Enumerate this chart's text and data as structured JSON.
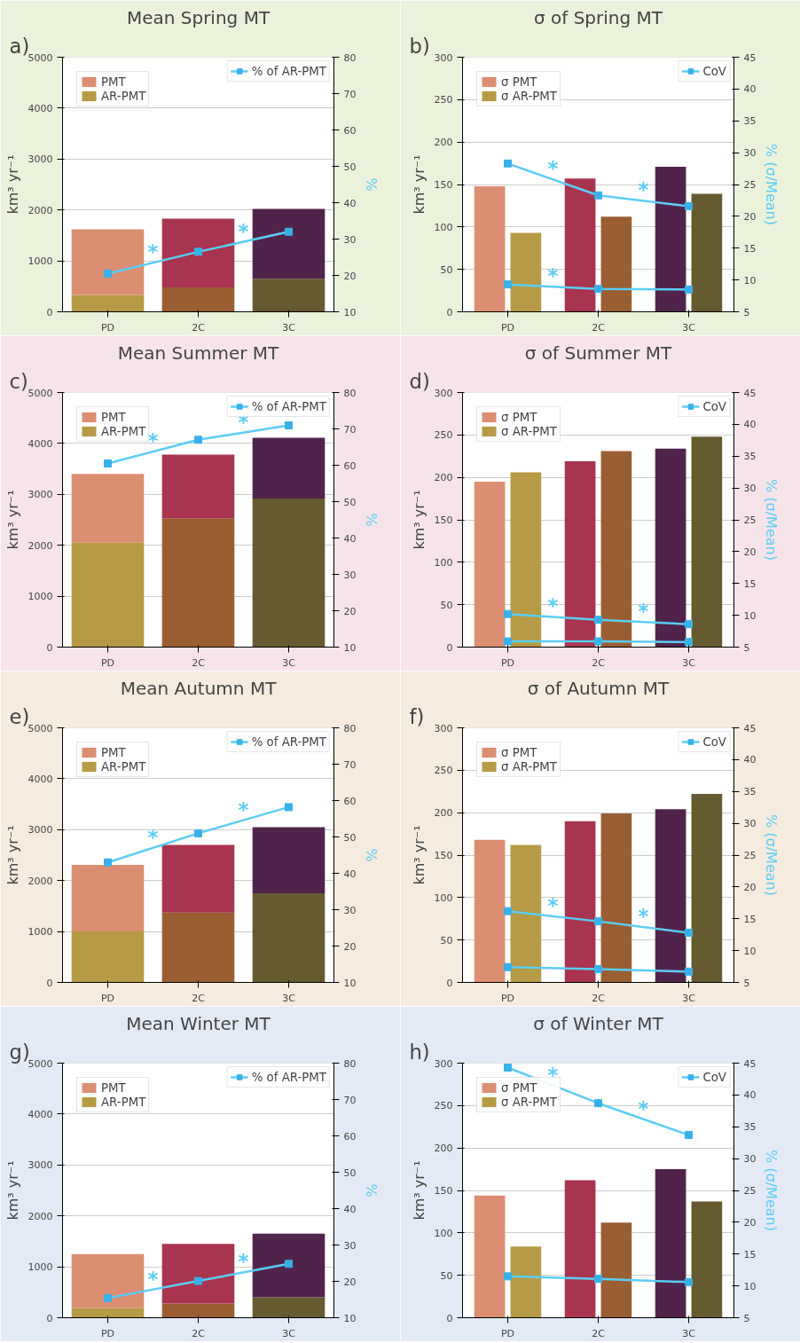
{
  "chart_data": [
    {
      "type": "bar",
      "stacked": true,
      "title": "Mean Spring MT",
      "categories": [
        "PD",
        "2C",
        "3C"
      ],
      "ylabel": "km³ yr⁻¹",
      "y2label": "%",
      "ylim": [
        0,
        5000
      ],
      "yticks": [
        0,
        1000,
        2000,
        3000,
        4000,
        5000
      ],
      "y2lim": [
        10,
        80
      ],
      "y2ticks": [
        10,
        20,
        30,
        40,
        50,
        60,
        70,
        80
      ],
      "grid": "y",
      "legend": "top",
      "marker": "square",
      "annotations": [
        "a)",
        "*",
        "*"
      ],
      "series": [
        {
          "name": "AR-PMT",
          "colors": [
            "#b69a45",
            "#9a5e33",
            "#655a30"
          ],
          "values": [
            330,
            480,
            650
          ]
        },
        {
          "name": "PMT",
          "colors": [
            "#dc8e72",
            "#a83450",
            "#50244a"
          ],
          "values": [
            1290,
            1350,
            1370
          ]
        },
        {
          "name": "% of AR-PMT",
          "type": "line",
          "axis": "y2",
          "color": "#5bcdf5",
          "values": [
            20.5,
            26.5,
            32
          ]
        }
      ]
    },
    {
      "type": "bar",
      "title": "σ of Spring MT",
      "categories": [
        "PD",
        "2C",
        "3C"
      ],
      "ylabel": "km³ yr⁻¹",
      "y2label": "% (σ/Mean)",
      "ylim": [
        0,
        300
      ],
      "yticks": [
        0,
        50,
        100,
        150,
        200,
        250,
        300
      ],
      "y2lim": [
        5,
        45
      ],
      "y2ticks": [
        5,
        10,
        15,
        20,
        25,
        30,
        35,
        40,
        45
      ],
      "grid": "y",
      "legend": "top",
      "marker": "square",
      "annotations": [
        "b)",
        "*",
        "*",
        "*"
      ],
      "series": [
        {
          "name": "σ PMT",
          "colors": [
            "#dc8e72",
            "#a83450",
            "#50244a"
          ],
          "values": [
            148,
            157,
            171
          ]
        },
        {
          "name": "σ AR-PMT",
          "colors": [
            "#b69a45",
            "#9a5e33",
            "#655a30"
          ],
          "values": [
            93,
            112,
            139
          ]
        },
        {
          "name": "CoV",
          "type": "line",
          "axis": "y2",
          "color": "#5bcdf5",
          "values": [
            28.3,
            23.3,
            21.6
          ]
        },
        {
          "type": "line",
          "axis": "y2",
          "color": "#5bcdf5",
          "values": [
            9.3,
            8.6,
            8.5
          ]
        }
      ]
    },
    {
      "type": "bar",
      "stacked": true,
      "title": "Mean Summer MT",
      "categories": [
        "PD",
        "2C",
        "3C"
      ],
      "ylabel": "km³ yr⁻¹",
      "y2label": "%",
      "ylim": [
        0,
        5000
      ],
      "yticks": [
        0,
        1000,
        2000,
        3000,
        4000,
        5000
      ],
      "y2lim": [
        10,
        80
      ],
      "y2ticks": [
        10,
        20,
        30,
        40,
        50,
        60,
        70,
        80
      ],
      "grid": "y",
      "legend": "top",
      "marker": "square",
      "annotations": [
        "c)",
        "*",
        "*"
      ],
      "series": [
        {
          "name": "AR-PMT",
          "colors": [
            "#b69a45",
            "#9a5e33",
            "#655a30"
          ],
          "values": [
            2050,
            2530,
            2920
          ]
        },
        {
          "name": "PMT",
          "colors": [
            "#dc8e72",
            "#a83450",
            "#50244a"
          ],
          "values": [
            1350,
            1250,
            1190
          ]
        },
        {
          "name": "% of AR-PMT",
          "type": "line",
          "axis": "y2",
          "color": "#5bcdf5",
          "values": [
            60.5,
            67,
            71
          ]
        }
      ]
    },
    {
      "type": "bar",
      "title": "σ of Summer MT",
      "categories": [
        "PD",
        "2C",
        "3C"
      ],
      "ylabel": "km³ yr⁻¹",
      "y2label": "% (σ/Mean)",
      "ylim": [
        0,
        300
      ],
      "yticks": [
        0,
        50,
        100,
        150,
        200,
        250,
        300
      ],
      "y2lim": [
        5,
        45
      ],
      "y2ticks": [
        5,
        10,
        15,
        20,
        25,
        30,
        35,
        40,
        45
      ],
      "grid": "y",
      "legend": "top",
      "marker": "square",
      "annotations": [
        "d)",
        "*",
        "*"
      ],
      "series": [
        {
          "name": "σ PMT",
          "colors": [
            "#dc8e72",
            "#a83450",
            "#50244a"
          ],
          "values": [
            195,
            219,
            234
          ]
        },
        {
          "name": "σ AR-PMT",
          "colors": [
            "#b69a45",
            "#9a5e33",
            "#655a30"
          ],
          "values": [
            206,
            231,
            248
          ]
        },
        {
          "name": "CoV",
          "type": "line",
          "axis": "y2",
          "color": "#5bcdf5",
          "values": [
            10.2,
            9.3,
            8.6
          ]
        },
        {
          "type": "line",
          "axis": "y2",
          "color": "#5bcdf5",
          "values": [
            5.9,
            5.9,
            5.8
          ]
        }
      ]
    },
    {
      "type": "bar",
      "stacked": true,
      "title": "Mean Autumn MT",
      "categories": [
        "PD",
        "2C",
        "3C"
      ],
      "ylabel": "km³ yr⁻¹",
      "y2label": "%",
      "ylim": [
        0,
        5000
      ],
      "yticks": [
        0,
        1000,
        2000,
        3000,
        4000,
        5000
      ],
      "y2lim": [
        10,
        80
      ],
      "y2ticks": [
        10,
        20,
        30,
        40,
        50,
        60,
        70,
        80
      ],
      "grid": "y",
      "legend": "top",
      "marker": "square",
      "annotations": [
        "e)",
        "*",
        "*"
      ],
      "series": [
        {
          "name": "AR-PMT",
          "colors": [
            "#b69a45",
            "#9a5e33",
            "#655a30"
          ],
          "values": [
            1000,
            1370,
            1750
          ]
        },
        {
          "name": "PMT",
          "colors": [
            "#dc8e72",
            "#a83450",
            "#50244a"
          ],
          "values": [
            1310,
            1330,
            1300
          ]
        },
        {
          "name": "% of AR-PMT",
          "type": "line",
          "axis": "y2",
          "color": "#5bcdf5",
          "values": [
            43,
            51,
            58.2
          ]
        }
      ]
    },
    {
      "type": "bar",
      "title": "σ of Autumn MT",
      "categories": [
        "PD",
        "2C",
        "3C"
      ],
      "ylabel": "km³ yr⁻¹",
      "y2label": "% (σ/Mean)",
      "ylim": [
        0,
        300
      ],
      "yticks": [
        0,
        50,
        100,
        150,
        200,
        250,
        300
      ],
      "y2lim": [
        5,
        45
      ],
      "y2ticks": [
        5,
        10,
        15,
        20,
        25,
        30,
        35,
        40,
        45
      ],
      "grid": "y",
      "legend": "top",
      "marker": "square",
      "annotations": [
        "f)",
        "*",
        "*"
      ],
      "series": [
        {
          "name": "σ PMT",
          "colors": [
            "#dc8e72",
            "#a83450",
            "#50244a"
          ],
          "values": [
            168,
            190,
            204
          ]
        },
        {
          "name": "σ AR-PMT",
          "colors": [
            "#b69a45",
            "#9a5e33",
            "#655a30"
          ],
          "values": [
            162,
            199,
            222
          ]
        },
        {
          "name": "CoV",
          "type": "line",
          "axis": "y2",
          "color": "#5bcdf5",
          "values": [
            16.2,
            14.6,
            12.8
          ]
        },
        {
          "type": "line",
          "axis": "y2",
          "color": "#5bcdf5",
          "values": [
            7.4,
            7.1,
            6.7
          ]
        }
      ]
    },
    {
      "type": "bar",
      "stacked": true,
      "title": "Mean Winter MT",
      "categories": [
        "PD",
        "2C",
        "3C"
      ],
      "ylabel": "km³ yr⁻¹",
      "y2label": "%",
      "ylim": [
        0,
        5000
      ],
      "yticks": [
        0,
        1000,
        2000,
        3000,
        4000,
        5000
      ],
      "y2lim": [
        10,
        80
      ],
      "y2ticks": [
        10,
        20,
        30,
        40,
        50,
        60,
        70,
        80
      ],
      "grid": "y",
      "legend": "top",
      "marker": "square",
      "annotations": [
        "g)",
        "*",
        "*"
      ],
      "series": [
        {
          "name": "AR-PMT",
          "colors": [
            "#b69a45",
            "#9a5e33",
            "#655a30"
          ],
          "values": [
            190,
            280,
            400
          ]
        },
        {
          "name": "PMT",
          "colors": [
            "#dc8e72",
            "#a83450",
            "#50244a"
          ],
          "values": [
            1060,
            1170,
            1250
          ]
        },
        {
          "name": "% of AR-PMT",
          "type": "line",
          "axis": "y2",
          "color": "#5bcdf5",
          "values": [
            15.4,
            20.1,
            24.8
          ]
        }
      ]
    },
    {
      "type": "bar",
      "title": "σ of Winter MT",
      "categories": [
        "PD",
        "2C",
        "3C"
      ],
      "ylabel": "km³ yr⁻¹",
      "y2label": "% (σ/Mean)",
      "ylim": [
        0,
        300
      ],
      "yticks": [
        0,
        50,
        100,
        150,
        200,
        250,
        300
      ],
      "y2lim": [
        5,
        45
      ],
      "y2ticks": [
        5,
        10,
        15,
        20,
        25,
        30,
        35,
        40,
        45
      ],
      "grid": "y",
      "legend": "top",
      "marker": "square",
      "annotations": [
        "h)",
        "*",
        "*"
      ],
      "series": [
        {
          "name": "σ PMT",
          "colors": [
            "#dc8e72",
            "#a83450",
            "#50244a"
          ],
          "values": [
            144,
            162,
            175
          ]
        },
        {
          "name": "σ AR-PMT",
          "colors": [
            "#b69a45",
            "#9a5e33",
            "#655a30"
          ],
          "values": [
            84,
            112,
            137
          ]
        },
        {
          "name": "CoV",
          "type": "line",
          "axis": "y2",
          "color": "#5bcdf5",
          "values": [
            44.3,
            38.7,
            33.7
          ]
        },
        {
          "type": "line",
          "axis": "y2",
          "color": "#5bcdf5",
          "values": [
            11.5,
            11.1,
            10.6
          ]
        }
      ]
    }
  ]
}
